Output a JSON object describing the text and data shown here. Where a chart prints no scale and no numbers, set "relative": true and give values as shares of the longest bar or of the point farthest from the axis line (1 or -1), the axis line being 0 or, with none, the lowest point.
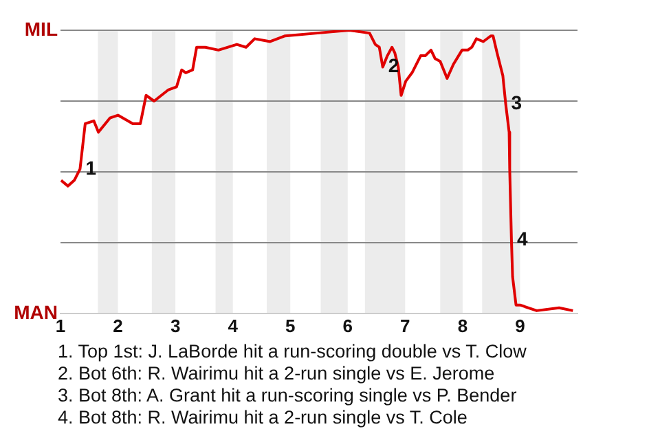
{
  "chart_data": {
    "type": "line",
    "relative": true,
    "x": [
      1.01,
      1.13,
      1.24,
      1.34,
      1.43,
      1.58,
      1.66,
      1.86,
      2.0,
      2.26,
      2.39,
      2.49,
      2.63,
      2.88,
      3.02,
      3.11,
      3.18,
      3.3,
      3.37,
      3.52,
      3.75,
      4.07,
      4.23,
      4.38,
      4.65,
      4.91,
      5.47,
      6.02,
      6.38,
      6.48,
      6.55,
      6.61,
      6.69,
      6.77,
      6.82,
      6.88,
      6.93,
      7.01,
      7.12,
      7.27,
      7.35,
      7.45,
      7.52,
      7.61,
      7.73,
      7.84,
      7.99,
      8.09,
      8.16,
      8.24,
      8.36,
      8.49,
      8.53,
      8.6,
      8.7,
      8.75,
      8.81,
      8.82,
      8.85,
      8.87,
      8.93,
      9.0,
      9.29,
      9.68,
      9.92
    ],
    "series": [
      {
        "color": "#e00000",
        "values": [
          0.47,
          0.45,
          0.47,
          0.51,
          0.67,
          0.68,
          0.64,
          0.69,
          0.7,
          0.67,
          0.67,
          0.77,
          0.75,
          0.79,
          0.8,
          0.86,
          0.85,
          0.86,
          0.94,
          0.94,
          0.93,
          0.95,
          0.94,
          0.97,
          0.96,
          0.98,
          0.99,
          1.0,
          0.99,
          0.95,
          0.94,
          0.87,
          0.91,
          0.94,
          0.92,
          0.87,
          0.77,
          0.82,
          0.85,
          0.91,
          0.91,
          0.93,
          0.9,
          0.89,
          0.83,
          0.88,
          0.93,
          0.93,
          0.94,
          0.97,
          0.96,
          0.98,
          0.98,
          0.92,
          0.84,
          0.74,
          0.64,
          0.51,
          0.26,
          0.13,
          0.03,
          0.03,
          0.01,
          0.02,
          0.01
        ]
      }
    ],
    "xlim": [
      1,
      10
    ],
    "xticks": [
      1,
      2,
      3,
      4,
      5,
      6,
      7,
      8,
      9
    ],
    "grid": "y",
    "legend": false,
    "marker": "none",
    "line_style": "solid",
    "bands": [
      {
        "axis": "x",
        "from": 1.65,
        "to": 2,
        "color": "#ececec"
      },
      {
        "axis": "x",
        "from": 2.59,
        "to": 3,
        "color": "#ececec"
      },
      {
        "axis": "x",
        "from": 3.7,
        "to": 4,
        "color": "#ececec"
      },
      {
        "axis": "x",
        "from": 4.59,
        "to": 5,
        "color": "#ececec"
      },
      {
        "axis": "x",
        "from": 5.53,
        "to": 6,
        "color": "#ececec"
      },
      {
        "axis": "x",
        "from": 6.3,
        "to": 7,
        "color": "#ececec"
      },
      {
        "axis": "x",
        "from": 7.61,
        "to": 8,
        "color": "#ececec"
      },
      {
        "axis": "x",
        "from": 8.34,
        "to": 9,
        "color": "#ececec"
      }
    ],
    "annotations": [
      "MIL",
      "MAN",
      {
        "text": "1",
        "x": 1.34,
        "y": 0.51
      },
      {
        "text": "2",
        "x": 6.61,
        "y": 0.87
      },
      {
        "text": "3",
        "x": 8.75,
        "y": 0.74
      },
      {
        "text": "4",
        "x": 8.85,
        "y": 0.26
      },
      "1. Top 1st: J. LaBorde hit a run-scoring double vs T. Clow",
      "2. Bot 6th: R. Wairimu hit a 2-run single vs E. Jerome",
      "3. Bot 8th: A. Grant hit a run-scoring single vs P. Bender",
      "4. Bot 8th: R. Wairimu hit a 2-run single vs T. Cole"
    ]
  }
}
